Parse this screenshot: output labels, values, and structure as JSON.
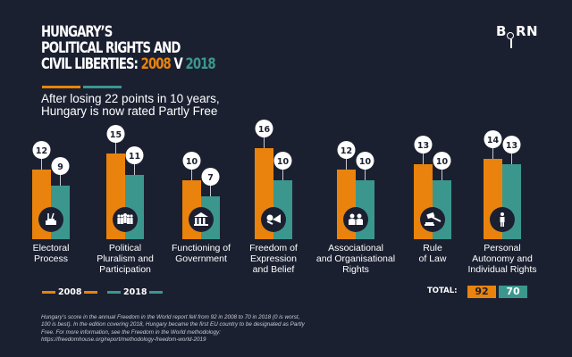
{
  "header": {
    "title_line1": "HUNGARY’S",
    "title_line2": "POLITICAL RIGHTS AND",
    "title_line3_prefix": "CIVIL LIBERTIES: ",
    "title_year1": "2008",
    "title_vs": " V ",
    "title_year2": "2018",
    "subtitle_line1": "After losing 22 points in 10 years,",
    "subtitle_line2": "Hungary is now rated Partly Free",
    "logo_prefix": "B",
    "logo_suffix": "RN",
    "logo_icon": "magnifier-i-icon"
  },
  "colors": {
    "background": "#1b2031",
    "year_2008": "#e9830d",
    "year_2018": "#3b978d",
    "bubble": "#ffffff",
    "icon_circle": "#1b2031"
  },
  "chart_data": {
    "type": "bar",
    "title": "Hungary's Political Rights and Civil Liberties: 2008 v 2018",
    "xlabel": "",
    "ylabel": "",
    "categories": [
      "Electoral Process",
      "Political Pluralism and Participation",
      "Functioning of Government",
      "Freedom of Expression and Belief",
      "Associational and Organisational Rights",
      "Rule of Law",
      "Personal Autonomy and Individual Rights"
    ],
    "category_labels": [
      [
        "Electoral",
        "Process"
      ],
      [
        "Political",
        "Pluralism and",
        "Participation"
      ],
      [
        "Functioning of",
        "Government"
      ],
      [
        "Freedom of",
        "Expression",
        "and Belief"
      ],
      [
        "Associational",
        "and Organisational",
        "Rights"
      ],
      [
        "Rule",
        "of Law"
      ],
      [
        "Personal",
        "Autonomy and",
        "Individual Rights"
      ]
    ],
    "category_icons": [
      "ballot-box-icon",
      "crowd-icon",
      "government-building-icon",
      "megaphone-icon",
      "people-pair-icon",
      "gavel-icon",
      "person-icon"
    ],
    "series": [
      {
        "name": "2008",
        "color": "#e9830d",
        "values": [
          12,
          15,
          10,
          16,
          12,
          13,
          14
        ]
      },
      {
        "name": "2018",
        "color": "#3b978d",
        "values": [
          9,
          11,
          7,
          10,
          10,
          10,
          13
        ]
      }
    ],
    "ylim": [
      0,
      16
    ],
    "grid": false,
    "legend": "bottom-left",
    "data_labels": true
  },
  "legend": {
    "item_2008": "2008",
    "item_2018": "2018"
  },
  "totals": {
    "label": "TOTAL:",
    "value_2008": "92",
    "value_2018": "70"
  },
  "footnote": {
    "text": "Hungary’s score in the annual Freedom in the World report fell from 92 in 2008 to 70 in 2018 (0 is worst, 100 is best). In the edition covering 2018, Hungary became the first EU country to be designated as Partly Free. For more information, see the Freedom in the World methodology: https://freedomhouse.org/report/methodology-freedom-world-2019"
  }
}
